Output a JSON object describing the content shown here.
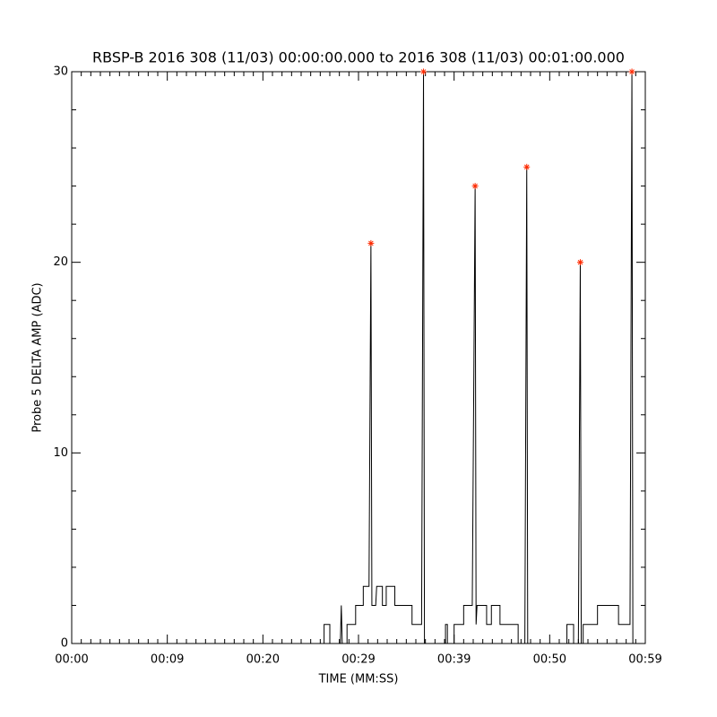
{
  "chart_data": {
    "type": "line",
    "title": "RBSP-B 2016 308 (11/03) 00:00:00.000 to 2016 308 (11/03) 00:01:00.000",
    "xlabel": "TIME (MM:SS)",
    "ylabel": "Probe 5 DELTA AMP (ADC)",
    "xlim": [
      0,
      60
    ],
    "xticks": [
      {
        "value": 0,
        "label": "00:00"
      },
      {
        "value": 10,
        "label": "00:09"
      },
      {
        "value": 20,
        "label": "00:20"
      },
      {
        "value": 30,
        "label": "00:29"
      },
      {
        "value": 40,
        "label": "00:39"
      },
      {
        "value": 50,
        "label": "00:50"
      },
      {
        "value": 60,
        "label": "00:59"
      }
    ],
    "ylim": [
      0,
      30
    ],
    "yticks": [
      0,
      10,
      20,
      30
    ],
    "x_minor_divisions": 10,
    "y_minor_divisions": 5,
    "series": [
      {
        "color": "#000000",
        "marker": "none",
        "x": [
          0,
          26.4,
          26.4,
          27.0,
          27.0,
          28.1,
          28.2,
          28.3,
          28.8,
          28.8,
          29.7,
          29.7,
          30.5,
          30.5,
          31.1,
          31.3,
          31.4,
          31.8,
          31.9,
          32.5,
          32.5,
          32.9,
          32.9,
          33.8,
          33.8,
          35.6,
          35.6,
          36.6,
          36.8,
          36.9,
          39.1,
          39.1,
          39.3,
          39.3,
          40.0,
          40.0,
          41.0,
          41.0,
          41.9,
          42.2,
          42.3,
          42.4,
          43.4,
          43.4,
          43.9,
          43.9,
          44.8,
          44.8,
          46.7,
          46.7,
          47.4,
          47.6,
          47.7,
          51.8,
          51.8,
          52.5,
          52.5,
          53.0,
          53.2,
          53.3,
          53.5,
          53.5,
          55.0,
          55.0,
          57.2,
          57.2,
          58.4,
          58.6,
          58.7,
          60
        ],
        "values": [
          0,
          0,
          1,
          1,
          0,
          0,
          2,
          0,
          0,
          1,
          1,
          2,
          2,
          3,
          3,
          21,
          2,
          2,
          3,
          3,
          2,
          2,
          3,
          3,
          2,
          2,
          1,
          1,
          30,
          0,
          0,
          1,
          1,
          0,
          0,
          1,
          1,
          2,
          2,
          24,
          1,
          2,
          2,
          1,
          1,
          2,
          2,
          1,
          1,
          0,
          0,
          25,
          0,
          0,
          1,
          1,
          0,
          0,
          20,
          0,
          0,
          1,
          1,
          2,
          2,
          1,
          1,
          30,
          0,
          0
        ]
      },
      {
        "color": "#ff2a00",
        "marker": "asterisk",
        "x": [
          31.3,
          36.8,
          42.2,
          47.6,
          53.2,
          58.6
        ],
        "values": [
          21,
          30,
          24,
          25,
          20,
          30
        ]
      }
    ]
  }
}
